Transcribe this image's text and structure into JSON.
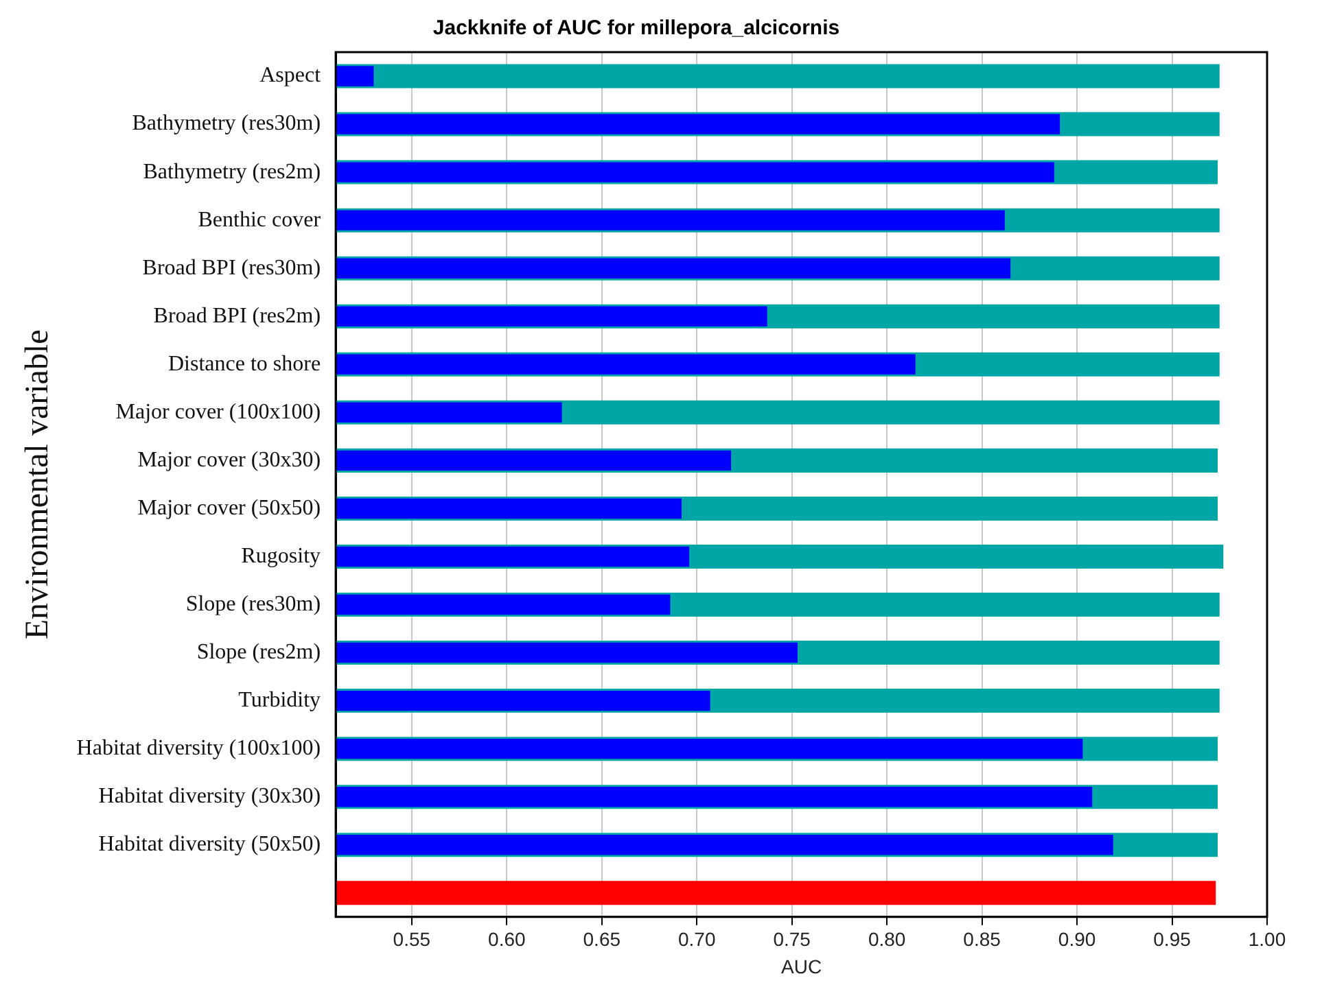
{
  "chart_data": {
    "type": "bar",
    "orientation": "horizontal",
    "title": "Jackknife of AUC for millepora_alcicornis",
    "xlabel": "AUC",
    "ylabel": "Environmental variable",
    "categories": [
      "Aspect",
      "Bathymetry (res30m)",
      "Bathymetry (res2m)",
      "Benthic cover",
      "Broad BPI (res30m)",
      "Broad BPI (res2m)",
      "Distance to shore",
      "Major cover (100x100)",
      "Major cover (30x30)",
      "Major cover (50x50)",
      "Rugosity",
      "Slope (res30m)",
      "Slope (res2m)",
      "Turbidity",
      "Habitat diversity (100x100)",
      "Habitat diversity (30x30)",
      "Habitat diversity (50x50)",
      null
    ],
    "series": [
      {
        "colors": [
          "#00a6a6",
          "#00a6a6",
          "#00a6a6",
          "#00a6a6",
          "#00a6a6",
          "#00a6a6",
          "#00a6a6",
          "#00a6a6",
          "#00a6a6",
          "#00a6a6",
          "#00a6a6",
          "#00a6a6",
          "#00a6a6",
          "#00a6a6",
          "#00a6a6",
          "#00a6a6",
          "#00a6a6",
          "#ff0000"
        ],
        "values": [
          0.975,
          0.975,
          0.974,
          0.975,
          0.975,
          0.975,
          0.975,
          0.975,
          0.974,
          0.974,
          0.977,
          0.975,
          0.975,
          0.975,
          0.974,
          0.974,
          0.974,
          0.973
        ]
      },
      {
        "color": "#0000ff",
        "values": [
          0.53,
          0.891,
          0.888,
          0.862,
          0.865,
          0.737,
          0.815,
          0.629,
          0.718,
          0.692,
          0.696,
          0.686,
          0.753,
          0.707,
          0.903,
          0.908,
          0.919,
          null
        ]
      }
    ],
    "xlim": [
      0.51,
      1.0
    ],
    "xticks": [
      {
        "value": 0.55,
        "label": "0.55"
      },
      {
        "value": 0.6,
        "label": "0.60"
      },
      {
        "value": 0.65,
        "label": "0.65"
      },
      {
        "value": 0.7,
        "label": "0.70"
      },
      {
        "value": 0.75,
        "label": "0.75"
      },
      {
        "value": 0.8,
        "label": "0.80"
      },
      {
        "value": 0.85,
        "label": "0.85"
      },
      {
        "value": 0.9,
        "label": "0.90"
      },
      {
        "value": 0.95,
        "label": "0.95"
      },
      {
        "value": 1.0,
        "label": "1.00"
      }
    ],
    "grid": "x",
    "legend": false
  }
}
